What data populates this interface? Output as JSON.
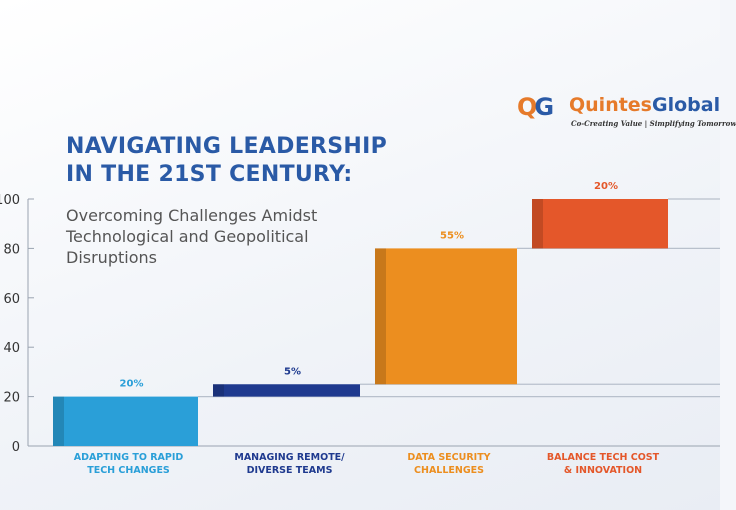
{
  "header": {
    "title_line1": "NAVIGATING LEADERSHIP",
    "title_line2": "IN THE 21ST CENTURY:",
    "subtitle": "Overcoming Challenges Amidst Technological and Geopolitical Disruptions"
  },
  "logo": {
    "mark_q": "Q",
    "mark_g": "G",
    "name_part1": "Quintes",
    "name_part2": "Global",
    "tagline": "Co-Creating Value | Simplifying Tomorrow"
  },
  "chart_data": {
    "type": "waterfall",
    "categories": [
      [
        "ADAPTING TO RAPID",
        "TECH CHANGES"
      ],
      [
        "MANAGING REMOTE/",
        "DIVERSE TEAMS"
      ],
      [
        "DATA SECURITY",
        "CHALLENGES"
      ],
      [
        "BALANCE TECH COST",
        "& INNOVATION"
      ]
    ],
    "values": [
      20,
      5,
      55,
      20
    ],
    "data_labels": [
      "20%",
      "5%",
      "55%",
      "20%"
    ],
    "colors": [
      "#2a9fd8",
      "#1f3a8f",
      "#ec8e1f",
      "#e4572a"
    ],
    "ylim": [
      0,
      100
    ],
    "yticks": [
      0,
      20,
      40,
      60,
      80,
      100
    ],
    "grid": false
  }
}
